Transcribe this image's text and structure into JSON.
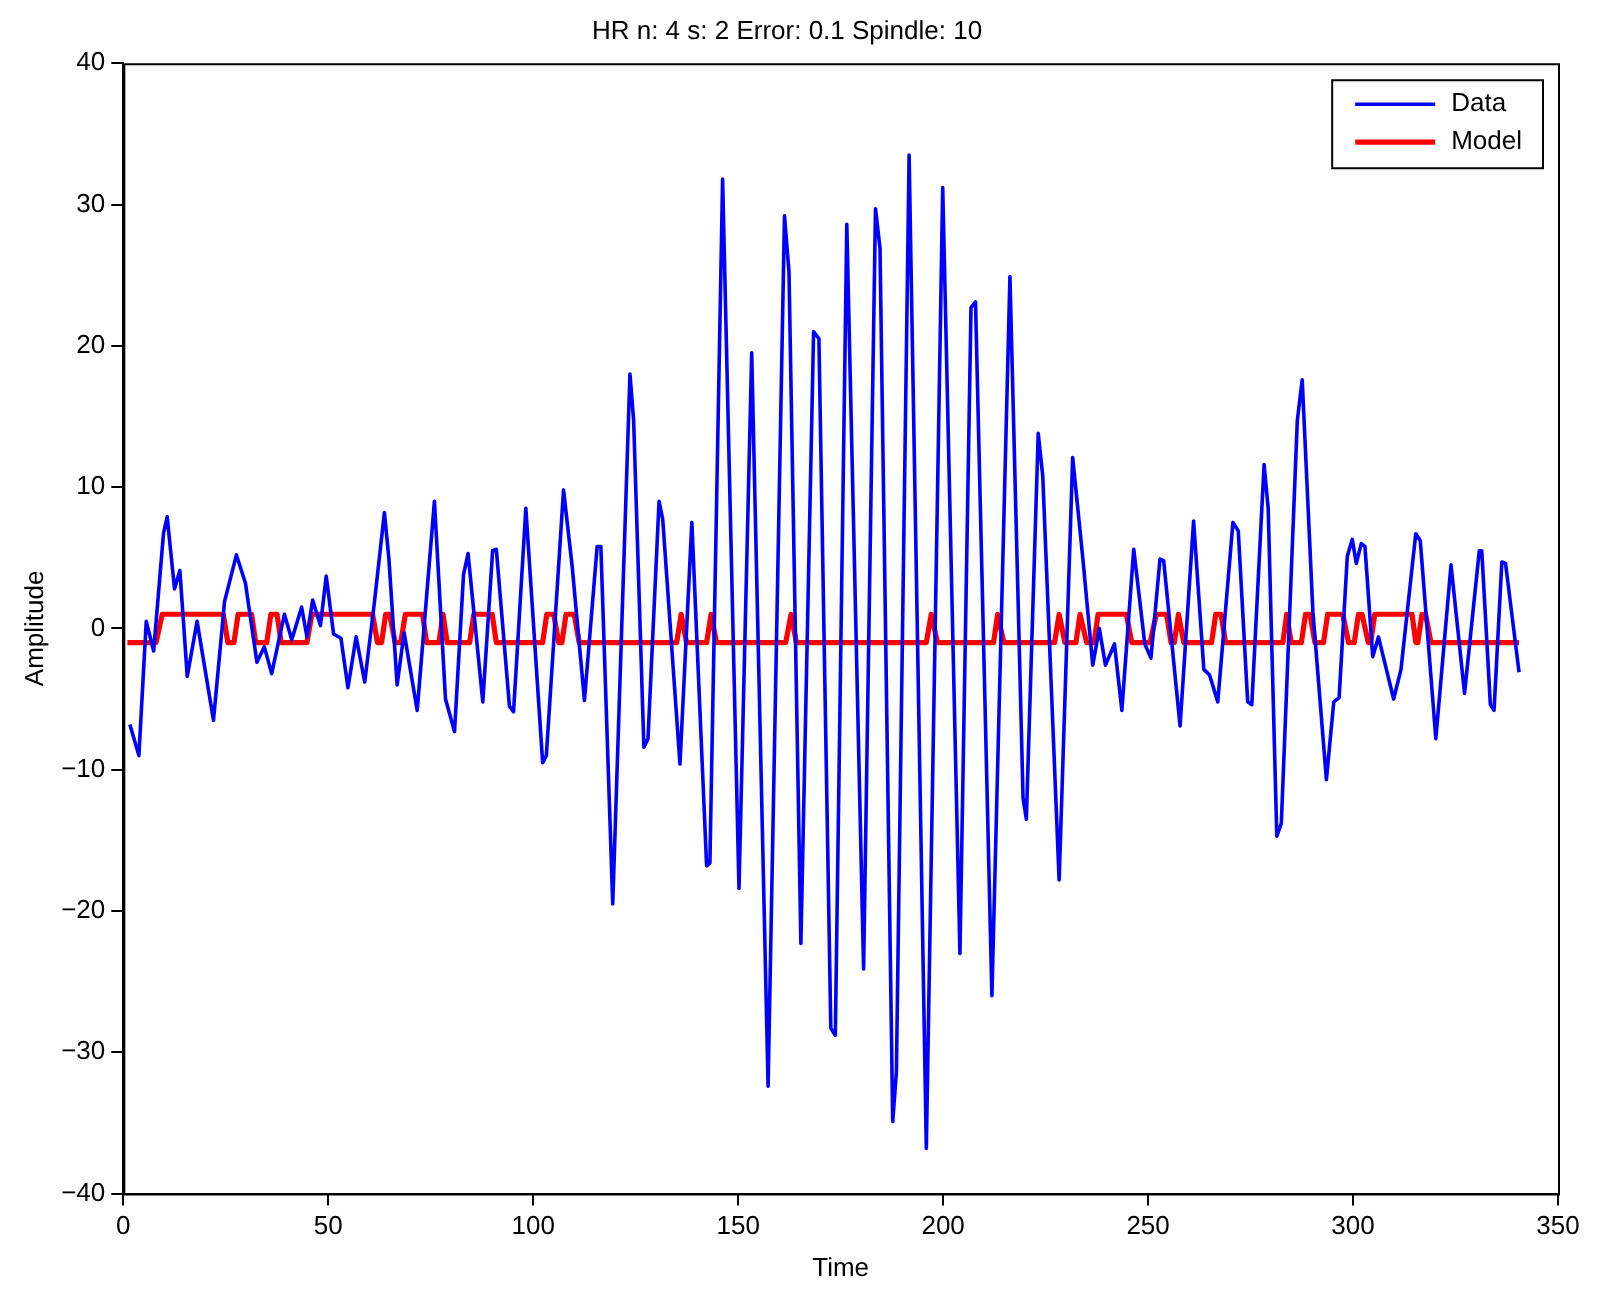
{
  "chart_data": {
    "type": "line",
    "title": "HR n: 4 s: 2 Error: 0.1 Spindle: 10",
    "xlabel": "Time",
    "ylabel": "Amplitude",
    "xlim": [
      0,
      350
    ],
    "xticks": [
      0,
      50,
      100,
      150,
      200,
      250,
      300,
      350
    ],
    "ylim": [
      -40,
      40
    ],
    "yticks": [
      -40,
      -30,
      -20,
      -10,
      0,
      10,
      20,
      30,
      40
    ],
    "grid": false,
    "legend": "top right",
    "marker": "none",
    "line_style": "solid",
    "series": [
      {
        "name": "Data",
        "color": "#0000ff",
        "x": [
          1.6,
          3.8,
          5.6,
          7.4,
          9.8,
          10.7,
          12.5,
          13.8,
          15.6,
          18,
          22,
          24.7,
          27.6,
          29.8,
          32.6,
          34.4,
          36.2,
          39.3,
          41.1,
          43.5,
          44.8,
          46.2,
          48.1,
          49.5,
          51.3,
          53.1,
          54.8,
          56.8,
          58.9,
          61.2,
          63.7,
          64.8,
          66.8,
          68.5,
          71.7,
          75.9,
          78.6,
          80.8,
          83,
          84.1,
          87.7,
          90.1,
          91,
          94.2,
          95.2,
          98.2,
          102.3,
          103.2,
          107.4,
          109.5,
          112.5,
          115.6,
          116.5,
          119.4,
          123.6,
          124.5,
          127,
          128,
          130.7,
          131.6,
          135.8,
          138.7,
          142.3,
          143.1,
          146.2,
          150.2,
          153.3,
          157.3,
          161.3,
          162.4,
          165.3,
          168.4,
          169.7,
          172.6,
          173.7,
          176.5,
          180.6,
          183.5,
          184.6,
          187.7,
          188.6,
          191.7,
          195.9,
          199.9,
          204.1,
          206.8,
          207.9,
          211.9,
          216.3,
          219.5,
          220.3,
          223.2,
          224.3,
          228.3,
          231.6,
          234.1,
          236.5,
          238.1,
          239.6,
          241.8,
          243.6,
          246.5,
          249.2,
          250.7,
          252.9,
          253.8,
          257.8,
          261.1,
          263.6,
          265,
          267,
          270.7,
          272,
          274.3,
          275.3,
          278.3,
          279.3,
          281.4,
          282.5,
          286.4,
          287.6,
          290.2,
          293.5,
          295.3,
          296.6,
          298.6,
          299.8,
          300.8,
          302,
          302.9,
          304.8,
          306.2,
          309.9,
          311.7,
          315.3,
          316.4,
          320.2,
          323.9,
          327.2,
          330.8,
          331.4,
          333.5,
          334.4,
          336.3,
          337.2,
          340.5
        ],
        "values": [
          -6.8,
          -9,
          0.5,
          -1.6,
          6.7,
          7.9,
          2.8,
          4.1,
          -3.4,
          0.5,
          -6.5,
          1.9,
          5.2,
          3.2,
          -2.4,
          -1.3,
          -3.2,
          1,
          -0.8,
          1.5,
          -0.6,
          2,
          0.2,
          3.7,
          -0.4,
          -0.7,
          -4.2,
          -0.6,
          -3.8,
          1.7,
          8.2,
          4.9,
          -4,
          -0.3,
          -5.8,
          9,
          -5,
          -7.3,
          3.8,
          5.3,
          -5.2,
          5.5,
          5.6,
          -5.5,
          -5.9,
          8.5,
          -9.5,
          -9,
          9.8,
          4.4,
          -5.1,
          5.8,
          5.8,
          -19.5,
          18,
          14.7,
          -8.4,
          -7.8,
          9,
          7.7,
          -9.6,
          7.5,
          -16.8,
          -16.6,
          31.8,
          -18.4,
          19.5,
          -32.4,
          29.2,
          25.2,
          -22.3,
          21,
          20.5,
          -28.3,
          -28.8,
          28.6,
          -24.1,
          29.7,
          26.9,
          -34.9,
          -31.4,
          33.5,
          -36.8,
          31.2,
          -23,
          22.7,
          23.1,
          -26,
          24.9,
          -12,
          -13.5,
          13.8,
          10.8,
          -17.8,
          12.1,
          4.9,
          -2.6,
          0,
          -2.6,
          -1.1,
          -5.8,
          5.6,
          -1.1,
          -2.1,
          4.9,
          4.8,
          -6.9,
          7.6,
          -2.9,
          -3.3,
          -5.2,
          7.5,
          6.9,
          -5.2,
          -5.4,
          11.6,
          8.5,
          -14.7,
          -13.8,
          14.7,
          17.6,
          1.2,
          -10.7,
          -5.2,
          -4.9,
          5.1,
          6.3,
          4.6,
          6,
          5.8,
          -2,
          -0.6,
          -5,
          -2.9,
          6.7,
          6.2,
          -7.8,
          4.5,
          -4.6,
          5.5,
          5.5,
          -5.4,
          -5.8,
          4.7,
          4.6,
          -3.1
        ]
      },
      {
        "name": "Model",
        "color": "#ff0000",
        "x": [
          1,
          8,
          9.5,
          24.4,
          25.5,
          27,
          28,
          31.3,
          32.3,
          35,
          36,
          37.5,
          38.5,
          44.8,
          46,
          60.8,
          62,
          63,
          64,
          65,
          66.3,
          67.7,
          68.8,
          73,
          74,
          77,
          78,
          79,
          84.5,
          85.5,
          90,
          91,
          102.3,
          103.3,
          105,
          106.2,
          107,
          108,
          110,
          111.2,
          135,
          136.1,
          137.4,
          142.3,
          143.4,
          144.7,
          161.6,
          162.9,
          164.2,
          195.9,
          197.1,
          198.6,
          212.3,
          213.3,
          214.8,
          227.2,
          228.3,
          229.7,
          232.4,
          233.4,
          235,
          236.8,
          237.8,
          244.7,
          246,
          250.5,
          252,
          254.5,
          255.6,
          256.4,
          257.4,
          258.7,
          265.5,
          266.5,
          267.8,
          268.9,
          282.9,
          283.8,
          284.9,
          287.4,
          288.4,
          289.5,
          290.7,
          292.8,
          293.8,
          297.5,
          298.9,
          300.3,
          301.3,
          302.2,
          303.7,
          304.3,
          305.3,
          314.4,
          315.3,
          315.8,
          316.8,
          317.7,
          319,
          340.5
        ],
        "values": [
          -1,
          -1,
          1,
          1,
          -1,
          -1,
          1,
          1,
          -1,
          -1,
          1,
          1,
          -1,
          -1,
          1,
          1,
          -1,
          -1,
          1,
          1,
          -1,
          -1,
          1,
          1,
          -1,
          -1,
          1,
          -1,
          -1,
          1,
          1,
          -1,
          -1,
          1,
          1,
          -1,
          -1,
          1,
          1,
          -1,
          -1,
          1,
          -1,
          -1,
          1,
          -1,
          -1,
          1,
          -1,
          -1,
          1,
          -1,
          -1,
          1,
          -1,
          -1,
          1,
          -1,
          -1,
          1,
          -1,
          -1,
          1,
          1,
          -1,
          -1,
          1,
          1,
          -1,
          -1,
          1,
          -1,
          -1,
          1,
          1,
          -1,
          -1,
          1,
          -1,
          -1,
          1,
          1,
          -1,
          -1,
          1,
          1,
          -1,
          -1,
          1,
          1,
          -1,
          -1,
          1,
          1,
          -1,
          -1,
          1,
          1,
          -1,
          -1
        ]
      }
    ]
  }
}
